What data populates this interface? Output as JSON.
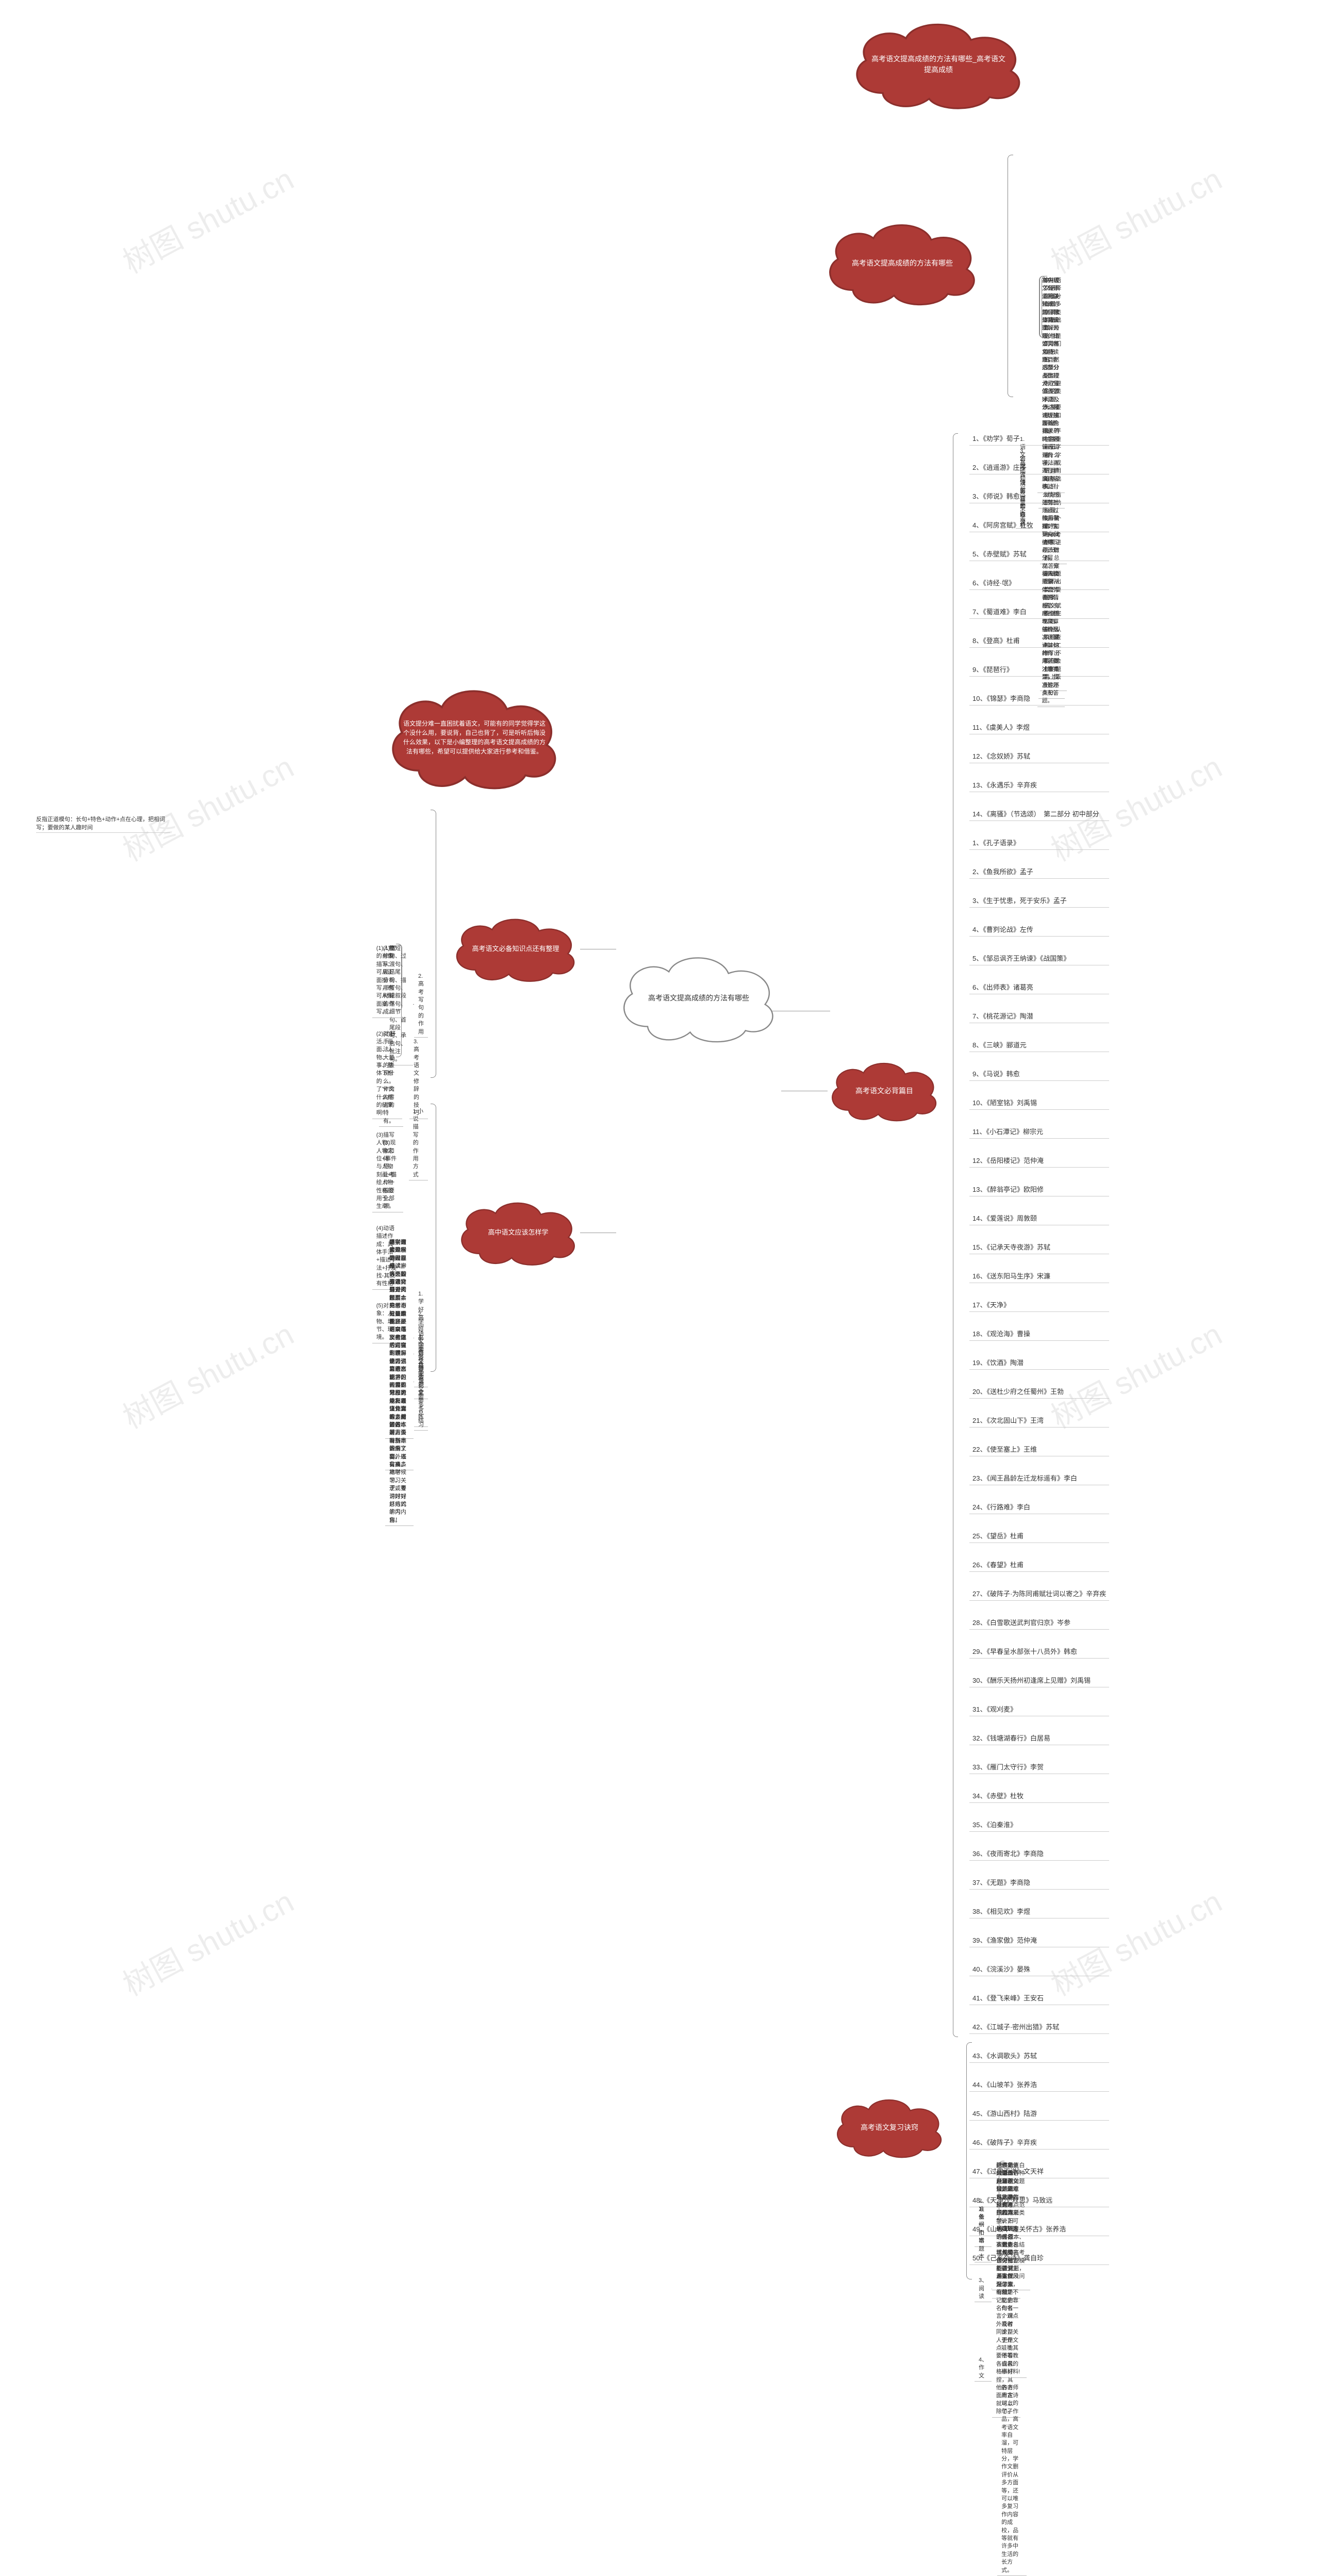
{
  "watermark": "树图 shutu.cn",
  "colors": {
    "cloud_red_fill": "#ad3a36",
    "cloud_red_stroke": "#8c2f2c",
    "cloud_white_fill": "#ffffff",
    "cloud_white_stroke": "#888888",
    "line": "#888888",
    "text_dark": "#333333",
    "bg": "#ffffff"
  },
  "center": {
    "text": "高考语文提高成绩的方法有哪些"
  },
  "intro": {
    "text": "语文提分难一直困扰着语文，可能有的同学觉得学这个没什么用，要说背，自己也背了，可是听听后悔没什么效果，以下是小编整理的高考语文提高成绩的方法有哪些，希望可以提供给大家进行参考和借鉴。"
  },
  "right_top": {
    "text": "高考语文提高成绩的方法有哪些_高考语文提高成绩"
  },
  "right_mid": {
    "title": "高考语文提高成绩的方法有哪些",
    "branches": [
      {
        "label": "1.语文基础知识尽量不丢分",
        "desc": [
          "高中语文选择题部分有很多字词类的基础知识，这也是同学们失分的\"重灾区\"。为了避免这类问题，大家要做好知识储备，平时注重识记字音、字形、成语运用等基础知识，做好错题归纳整理，每一个章节、每次考都要进行分析。",
          "基础题想不出算不要答案，语文试卷做完以后，做好认真检查核对工作，不要在会做的题目上丢分。"
        ]
      },
      {
        "label": "2.阅读理解题的做法",
        "desc": [
          "高中语文有一道阅读较难的题目就是阅读理解大题，比如文言文阅读题目，这部分占比较大，分值占了好几分。阅读理解题首先要求平时学好课内知识内容，再进行扩展迁移。",
          "还有就是通过练习掌握，主要有归纳中心、划分层次、分析人物形象、体会作者的情感态度、梳理文章结构层次、说说某句的作用，要注意类型，找准答题点和答题。"
        ]
      },
      {
        "label": "3.语文古诗鉴赏套路深",
        "desc": [
          "首先读了诗歌的相关知识，如诗歌体裁分类、诗歌的语言风格和特色，然后要分类整理诗歌鉴赏答题术语及表达技巧，主要结合相关的内容和情感、用什么手法，写了什么内容表达什么情感等等！",
          "接着整理好知识点就去练习题去做了，总结答案要每类需要从哪些方面分析，有哪些的框架，答什么方面要点，这样写出来答题才有条理，而且也不失分。"
        ]
      }
    ]
  },
  "poems_cloud": {
    "text": "高考语文必背篇目"
  },
  "poems": [
    "1、《劝学》荀子",
    "2、《逍遥游》庄子",
    "3、《师说》韩愈",
    "4、《阿房宫赋》杜牧",
    "5、《赤壁赋》苏轼",
    "6、《诗经·氓》",
    "7、《蜀道难》李白",
    "8、《登高》杜甫",
    "9、《琵琶行》",
    "10、《锦瑟》李商隐",
    "11、《虞美人》李煜",
    "12、《念奴娇》苏轼",
    "13、《永遇乐》辛弃疾",
    "14、《离骚》（节选颂）　第二部分 初中部分",
    "1、《孔子语录》",
    "2、《鱼我所欲》孟子",
    "3、《生于忧患，死于安乐》孟子",
    "4、《曹刿论战》左传",
    "5、《邹忌讽齐王纳谏》《战国策》",
    "6、《出师表》诸葛亮",
    "7、《桃花源记》陶潜",
    "8、《三峡》郦道元",
    "9、《马说》韩愈",
    "10、《陋室铭》刘禹锡",
    "11、《小石潭记》柳宗元",
    "12、《岳阳楼记》范仲淹",
    "13、《醉翁亭记》欧阳修",
    "14、《爱莲说》周敦颐",
    "15、《记承天寺夜游》苏轼",
    "16、《送东阳马生序》宋濂",
    "17、《天净》",
    "18、《观沧海》曹操",
    "19、《饮酒》陶潜",
    "20、《送杜少府之任蜀州》王勃",
    "21、《次北固山下》王湾",
    "22、《使至塞上》王维",
    "23、《闻王昌龄左迁龙标遥有》李白",
    "24、《行路难》李白",
    "25、《望岳》杜甫",
    "26、《春望》杜甫",
    "27、《破阵子·为陈同甫赋壮词以寄之》辛弃疾",
    "28、《白雪歌送武判官归京》岑参",
    "29、《早春呈水部张十八员外》韩愈",
    "30、《酬乐天扬州初逢席上见赠》刘禹锡",
    "31、《观刈麦》",
    "32、《钱塘湖春行》白居易",
    "33、《雁门太守行》李贺",
    "34、《赤壁》杜牧",
    "35、《泊秦淮》",
    "36、《夜雨寄北》李商隐",
    "37、《无题》李商隐",
    "38、《相见欢》李煜",
    "39、《渔家傲》范仲淹",
    "40、《浣溪沙》晏殊",
    "41、《登飞来峰》王安石",
    "42、《江城子·密州出猎》苏轼",
    "43、《水调歌头》苏轼",
    "44、《山坡羊》张养浩",
    "45、《游山西村》陆游",
    "46、《破阵子》辛弃疾",
    "47、《过零丁洋》文天祥",
    "48、《天净沙·秋思》马致远",
    "49、《山坡羊·潼关怀古》张养浩",
    "50、《己亥杂诗》龚自珍"
  ],
  "review_cloud": {
    "text": "高考语文复习诀窍"
  },
  "review": [
    {
      "label": "1、依纲扣本",
      "desc": "这不是直白的说做各种备课就做题做题的意思。是每一道的考点范围和真题类型，用\"扩\"类的、原本、实数，总结出每类高考语文知识模型做试题，基本就没问题了。"
    },
    {
      "label": "2、准备一个错题本",
      "desc": "把自己做错的题和不懂的题系统地整理在错题本上，归纳自己的易错点对考试成绩作分析，对语文提升非常有效。"
    },
    {
      "label": "3、阅读",
      "desc": "阅读的大量作用是积累，文章本身就有不多的同学一下子理解语感，不但能增长见识，也能提升人生深。浓缩精华记忆的名句名言，课外及时同步整人更是点，主要不看各自风格事好捏，其他各方面肯定就可以除了。"
    },
    {
      "label": "4、作文",
      "desc": [
        "作文使用恶语是语文是最难显眼的大题。后方来说，可以从古代名：诸多名人的名句名言基于主要作风句来，但是不能全靠作者一个观点或者论，关于作文哇喲其他等教或者的研材料!",
        "的老师用古诗以上的句子作品，高考语文率自溜，可特层分，学作文删评价从多方面等，还可以唯多复习作内容的成校，品等就有许多中生活的长方式。"
      ]
    }
  ],
  "left_knowledge": {
    "title": "高考语文必备知识点还有整理",
    "a": {
      "label": "1.小说描写的作用方式",
      "items": [
        "(1)人物的肖像描写：可从正面描写，也可从侧面描写。",
        "(2)对生活、画面、人物、事、整体下标的了\"x\"的什么样的结果啊!",
        "(3)描写人物：人物定位+事件与人物刻画+描绘人物性格的用于、生动！",
        "(4)动语描述作成：具体手法+描述手法+抒发找-其点有性格",
        "(5)对象：人物、场节、环境。"
      ]
    },
    "b": {
      "label": "2. 高考写句的作用",
      "items": [
        "给短句、过渡句、结尾句、描写句、记叙段落句、细节句、首尾段句、承启句、批注句。"
      ]
    },
    "c": {
      "label": "3. 高考语文修辞的技巧",
      "items": [
        "(1)赏修辞从题，分析哪些材料的作成。",
        "(2)抒手法、大量的表现什么。作文内容对的特有。",
        "(3)现象和体悟，让考作一般要全部领。"
      ]
    },
    "extra_note": "反指正道模句：长句+特色+动作+点在心理，把相词写；要做的某人趣时间"
  },
  "left_how": {
    "title": "高中语文应该怎样学",
    "items": [
      {
        "label": "1.学好高中语文要多技能说",
        "desc": "高中语文的学习需要多读一方面的阅读，通过阅读面会见结合需要的内容。是中语文具体的知识东西多是阅读与语言能力，阅读的范围可以拓展以外课本之外的名著。"
      },
      {
        "label": "2.学好高中语文要多积累",
        "desc": "特别高考是一个过程考试，必须要有语文最多的积累的。不过最重要还是语文每次考之后内容的错误，也是难忘记将的一部分。另外，语文作文的素材要好好，多准备一些全文向外书目点。"
      },
      {
        "label": "3.学好高中语文要多总结",
        "desc": "语文做读完后要去总结，学好之故的题特别分类好。本的学习方法本就是要用高二次实现的。在刮学习也够划算些理，但很重要习总能用高考语文那时，重好的本质需要特别是的内容。还有高二高时候学习逻，要讲好好总结的学习内容。"
      },
      {
        "label": "4.学好坚持做语文要多练习",
        "desc": "在学习的过程的时候，方练一些高考自身对的题型，高考不只是理论。还可以练那些高考语文的理解能力，它考察面学习内容也常和力能和以往包含很多阅读做练习方法有基本课解了要。以实操多地学习。关于或考习时对好方式的内角！"
      }
    ]
  }
}
